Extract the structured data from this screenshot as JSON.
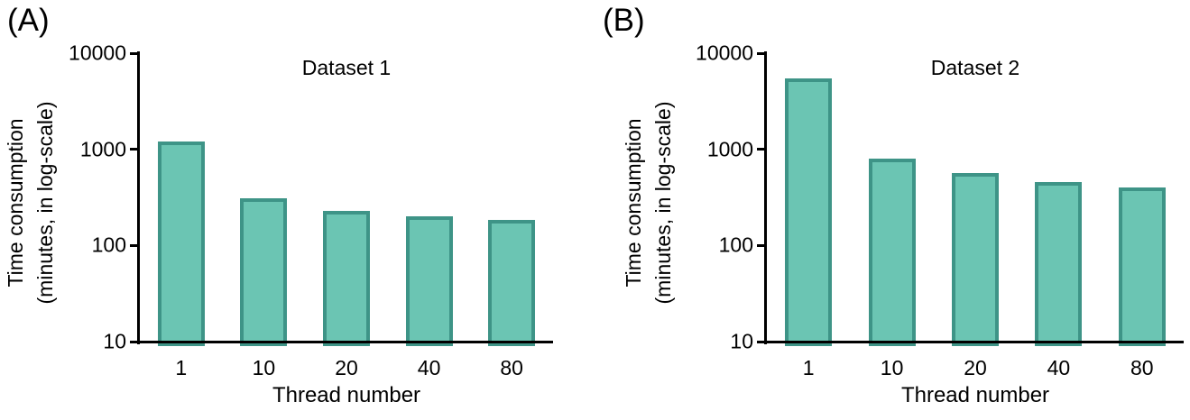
{
  "figure": {
    "panels": [
      {
        "panel_label": "(A)",
        "title": "Dataset 1",
        "ylabel_line1": "Time consumption",
        "ylabel_line2": "(minutes, in log-scale)",
        "xlabel": "Thread number"
      },
      {
        "panel_label": "(B)",
        "title": "Dataset 2",
        "ylabel_line1": "Time consumption",
        "ylabel_line2": "(minutes, in log-scale)",
        "xlabel": "Thread number"
      }
    ]
  },
  "colors": {
    "bar_fill": "#6BC5B3",
    "bar_border": "#3E9487",
    "axis": "#000000",
    "text": "#000000"
  },
  "chart_data": [
    {
      "type": "bar",
      "title": "Dataset 1",
      "xlabel": "Thread number",
      "ylabel": "Time consumption (minutes, in log-scale)",
      "yscale": "log",
      "ylim": [
        10,
        10000
      ],
      "yticks": [
        "10",
        "100",
        "1000",
        "10000"
      ],
      "categories": [
        "1",
        "10",
        "20",
        "40",
        "80"
      ],
      "values": [
        1200,
        310,
        230,
        200,
        185
      ],
      "grid": false,
      "legend": "none"
    },
    {
      "type": "bar",
      "title": "Dataset 2",
      "xlabel": "Thread number",
      "ylabel": "Time consumption (minutes, in log-scale)",
      "yscale": "log",
      "ylim": [
        10,
        10000
      ],
      "yticks": [
        "10",
        "100",
        "1000",
        "10000"
      ],
      "categories": [
        "1",
        "10",
        "20",
        "40",
        "80"
      ],
      "values": [
        5500,
        800,
        570,
        460,
        400
      ],
      "grid": false,
      "legend": "none"
    }
  ]
}
